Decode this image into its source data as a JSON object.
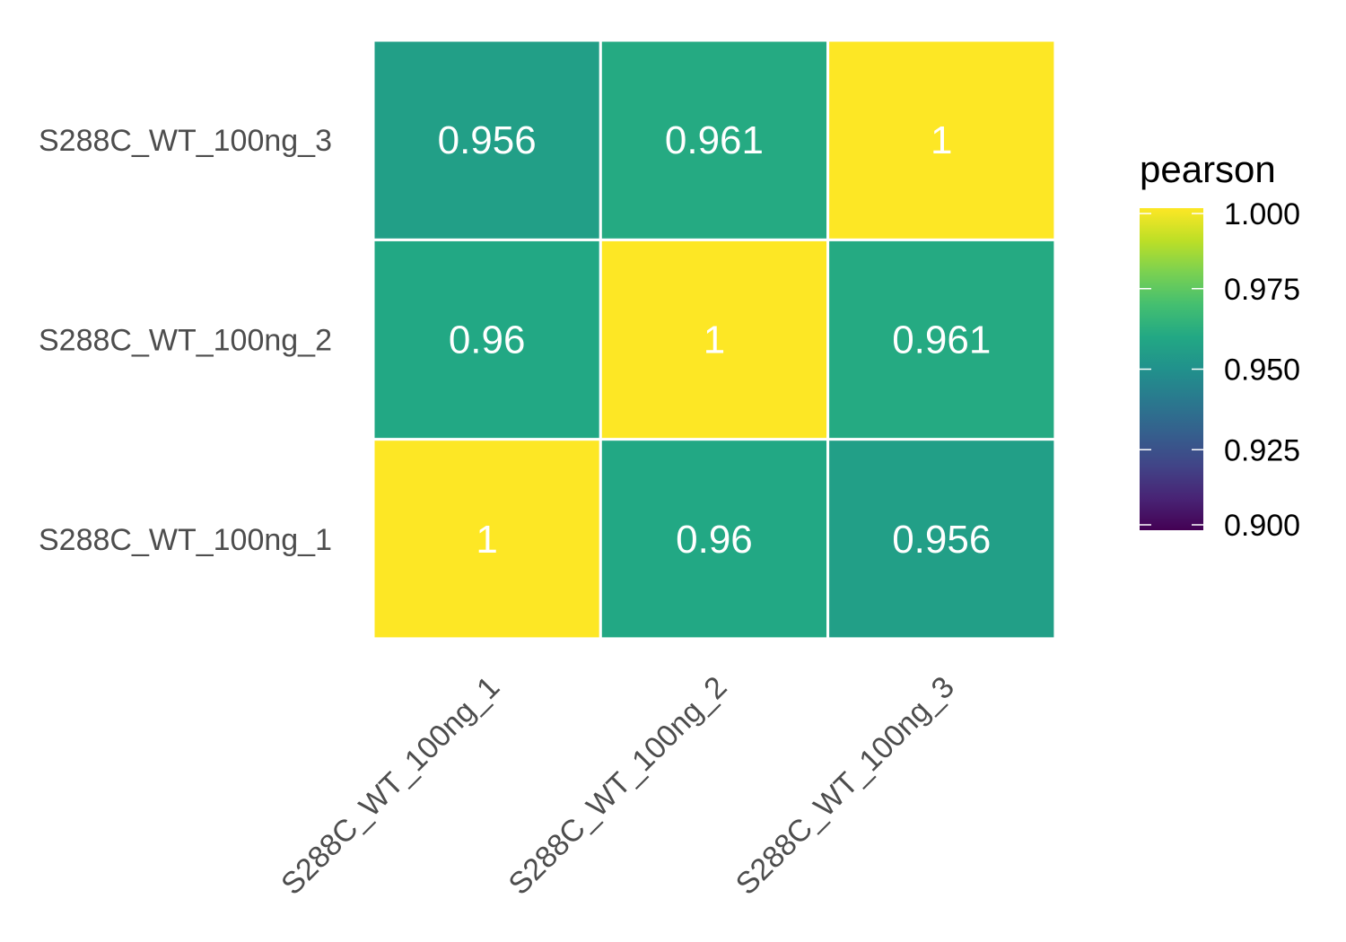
{
  "chart_data": {
    "type": "heatmap",
    "x_categories": [
      "S288C_WT_100ng_1",
      "S288C_WT_100ng_2",
      "S288C_WT_100ng_3"
    ],
    "y_categories": [
      "S288C_WT_100ng_1",
      "S288C_WT_100ng_2",
      "S288C_WT_100ng_3"
    ],
    "cells": [
      {
        "x": "S288C_WT_100ng_1",
        "y": "S288C_WT_100ng_1",
        "value": 1,
        "label": "1"
      },
      {
        "x": "S288C_WT_100ng_2",
        "y": "S288C_WT_100ng_1",
        "value": 0.96,
        "label": "0.96"
      },
      {
        "x": "S288C_WT_100ng_3",
        "y": "S288C_WT_100ng_1",
        "value": 0.956,
        "label": "0.956"
      },
      {
        "x": "S288C_WT_100ng_1",
        "y": "S288C_WT_100ng_2",
        "value": 0.96,
        "label": "0.96"
      },
      {
        "x": "S288C_WT_100ng_2",
        "y": "S288C_WT_100ng_2",
        "value": 1,
        "label": "1"
      },
      {
        "x": "S288C_WT_100ng_3",
        "y": "S288C_WT_100ng_2",
        "value": 0.961,
        "label": "0.961"
      },
      {
        "x": "S288C_WT_100ng_1",
        "y": "S288C_WT_100ng_3",
        "value": 0.956,
        "label": "0.956"
      },
      {
        "x": "S288C_WT_100ng_2",
        "y": "S288C_WT_100ng_3",
        "value": 0.961,
        "label": "0.961"
      },
      {
        "x": "S288C_WT_100ng_3",
        "y": "S288C_WT_100ng_3",
        "value": 1,
        "label": "1"
      }
    ],
    "legend": {
      "title": "pearson",
      "range": [
        0.9,
        1.0
      ],
      "ticks": [
        {
          "value": 1.0,
          "label": "1.000"
        },
        {
          "value": 0.975,
          "label": "0.975"
        },
        {
          "value": 0.95,
          "label": "0.950"
        },
        {
          "value": 0.925,
          "label": "0.925"
        },
        {
          "value": 0.9,
          "label": "0.900"
        }
      ],
      "placement": "right",
      "colormap": "viridis"
    },
    "colors": {
      "cell_border": "#ffffff",
      "cell_text": "#ffffff",
      "axis_text": "#4d4d4d"
    },
    "title": "",
    "xlabel": "",
    "ylabel": ""
  }
}
